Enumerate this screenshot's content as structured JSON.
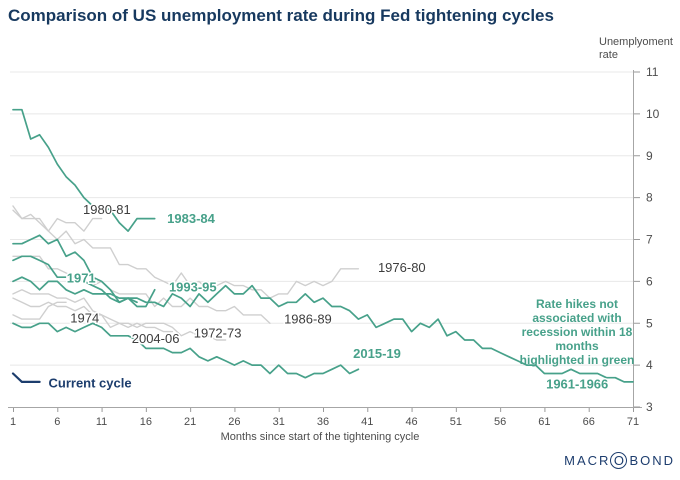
{
  "header": {
    "title": "Comparison of US unemployment rate during Fed tightening cycles"
  },
  "footer": {
    "logo_pre": "MACR",
    "logo_o": "O",
    "logo_post": "BOND"
  },
  "chart_data": {
    "type": "line",
    "title": "Comparison of US unemployment rate during Fed tightening cycles",
    "xlabel": "Months since start of the tightening cycle",
    "ylabel": "Unemplyoment rate",
    "xlim": [
      1,
      72
    ],
    "ylim": [
      3,
      11
    ],
    "x_ticks": [
      1,
      6,
      11,
      16,
      21,
      26,
      31,
      36,
      41,
      46,
      51,
      56,
      61,
      66,
      71
    ],
    "y_ticks": [
      3,
      4,
      5,
      6,
      7,
      8,
      9,
      10,
      11
    ],
    "grid": "horizontal",
    "legend_position": "inline-labels",
    "note": "Rate hikes not\nassociated with\nrecession within 18\nmonths\nhighlighted in green",
    "colors": {
      "green": "#47A18A",
      "gray": "#CFCFCF",
      "navy": "#1C3D6D",
      "gray_label": "#3D3D3D"
    },
    "series": [
      {
        "name": "1972-73",
        "color": "gray",
        "start_month": 1,
        "values": [
          5.7,
          5.8,
          5.7,
          5.7,
          5.7,
          5.6,
          5.6,
          5.5,
          5.6,
          5.3,
          5.2,
          4.9,
          5.0,
          4.9,
          5.0,
          4.9,
          4.9,
          4.8,
          4.8
        ]
      },
      {
        "name": "1974",
        "color": "gray",
        "start_month": 1,
        "values": [
          5.2,
          5.1,
          5.1,
          5.1,
          5.4,
          5.5,
          5.5
        ]
      },
      {
        "name": "1976-80",
        "color": "gray",
        "start_month": 1,
        "values": [
          7.8,
          7.5,
          7.6,
          7.4,
          7.2,
          7.0,
          7.2,
          6.9,
          7.0,
          6.8,
          6.8,
          6.8,
          6.4,
          6.4,
          6.3,
          6.3,
          6.1,
          6.0,
          5.9,
          6.2,
          5.9,
          6.0,
          5.8,
          5.9,
          6.0,
          5.9,
          5.9,
          5.8,
          5.8,
          5.6,
          5.7,
          5.7,
          6.0,
          5.9,
          6.0,
          5.9,
          6.0,
          6.3,
          6.3,
          6.3
        ]
      },
      {
        "name": "1980-81",
        "color": "gray",
        "start_month": 1,
        "values": [
          7.7,
          7.5,
          7.5,
          7.5,
          7.2,
          7.5,
          7.4,
          7.4,
          7.2,
          7.5,
          7.5
        ]
      },
      {
        "name": "1986-89",
        "color": "gray",
        "start_month": 1,
        "values": [
          6.6,
          6.6,
          6.6,
          6.6,
          6.3,
          6.3,
          6.2,
          6.1,
          6.0,
          5.9,
          6.0,
          5.8,
          5.7,
          5.7,
          5.7,
          5.7,
          5.4,
          5.6,
          5.4,
          5.4,
          5.6,
          5.4,
          5.4,
          5.3,
          5.3,
          5.4,
          5.2,
          5.2,
          5.2,
          5.0
        ]
      },
      {
        "name": "2004-06",
        "color": "gray",
        "start_month": 1,
        "values": [
          5.6,
          5.5,
          5.4,
          5.4,
          5.5,
          5.4,
          5.4,
          5.3,
          5.4,
          5.2,
          5.2,
          5.1,
          5.0,
          5.0,
          4.9,
          5.0,
          5.0,
          5.0,
          4.9,
          4.7,
          4.8,
          4.7,
          4.7,
          4.6,
          4.6
        ]
      },
      {
        "name": "1961-1966",
        "color": "green",
        "start_month": 1,
        "values": [
          6.9,
          6.9,
          7.0,
          7.1,
          6.9,
          7.0,
          6.6,
          6.7,
          6.5,
          6.1,
          6.0,
          5.8,
          5.5,
          5.6,
          5.6,
          5.5,
          5.5,
          5.4,
          5.7,
          5.6,
          5.4,
          5.7,
          5.5,
          5.7,
          5.9,
          5.7,
          5.7,
          5.9,
          5.6,
          5.6,
          5.4,
          5.5,
          5.5,
          5.7,
          5.5,
          5.6,
          5.4,
          5.4,
          5.3,
          5.1,
          5.2,
          4.9,
          5.0,
          5.1,
          5.1,
          4.8,
          5.0,
          4.9,
          5.1,
          4.7,
          4.8,
          4.6,
          4.6,
          4.4,
          4.4,
          4.3,
          4.2,
          4.1,
          4.0,
          4.0,
          3.8,
          3.8,
          3.8,
          3.9,
          3.8,
          3.8,
          3.8,
          3.7,
          3.7,
          3.6,
          3.6
        ]
      },
      {
        "name": "1971",
        "color": "green",
        "start_month": 1,
        "values": [
          6.0,
          6.1,
          6.0,
          5.8,
          6.0,
          6.0,
          5.8,
          5.7,
          5.8,
          5.7,
          5.7,
          5.7,
          5.6,
          5.6,
          5.5
        ]
      },
      {
        "name": "1983-84",
        "color": "green",
        "start_month": 1,
        "values": [
          10.1,
          10.1,
          9.4,
          9.5,
          9.2,
          8.8,
          8.5,
          8.3,
          8.0,
          7.8,
          7.8,
          7.7,
          7.4,
          7.2,
          7.5,
          7.5,
          7.5
        ]
      },
      {
        "name": "1993-95",
        "color": "green",
        "start_month": 1,
        "values": [
          6.5,
          6.6,
          6.6,
          6.5,
          6.4,
          6.1,
          6.1,
          6.1,
          6.0,
          5.9,
          5.8,
          5.6,
          5.5,
          5.6,
          5.4,
          5.4,
          5.8
        ]
      },
      {
        "name": "2015-19",
        "color": "green",
        "start_month": 1,
        "values": [
          5.0,
          4.9,
          4.9,
          5.0,
          5.0,
          4.8,
          4.9,
          4.8,
          4.9,
          5.0,
          4.9,
          4.7,
          4.7,
          4.7,
          4.6,
          4.4,
          4.4,
          4.4,
          4.3,
          4.3,
          4.4,
          4.2,
          4.1,
          4.2,
          4.1,
          4.0,
          4.1,
          4.0,
          4.0,
          3.8,
          4.0,
          3.8,
          3.8,
          3.7,
          3.8,
          3.8,
          3.9,
          4.0,
          3.8,
          3.9
        ]
      },
      {
        "name": "Current cycle",
        "color": "navy",
        "start_month": 1,
        "values": [
          3.8,
          3.6,
          3.6,
          3.6
        ]
      }
    ],
    "series_labels": [
      {
        "text": "1980-81",
        "month": 11.6,
        "value": 7.72,
        "color": "gray"
      },
      {
        "text": "1983-84",
        "month": 21.1,
        "value": 7.5,
        "color": "green"
      },
      {
        "text": "1971",
        "month": 8.7,
        "value": 6.08,
        "color": "green"
      },
      {
        "text": "1993-95",
        "month": 21.3,
        "value": 5.86,
        "color": "green"
      },
      {
        "text": "1976-80",
        "month": 44.9,
        "value": 6.33,
        "color": "gray"
      },
      {
        "text": "1974",
        "month": 9.1,
        "value": 5.12,
        "color": "gray"
      },
      {
        "text": "2004-06",
        "month": 17.1,
        "value": 4.64,
        "color": "gray"
      },
      {
        "text": "1972-73",
        "month": 24.1,
        "value": 4.77,
        "color": "gray"
      },
      {
        "text": "1986-89",
        "month": 34.3,
        "value": 5.1,
        "color": "gray"
      },
      {
        "text": "2015-19",
        "month": 42.1,
        "value": 4.28,
        "color": "green"
      },
      {
        "text": "1961-1966",
        "month": 64.7,
        "value": 3.55,
        "color": "green"
      },
      {
        "text": "Current cycle",
        "month": 9.7,
        "value": 3.57,
        "color": "navy"
      }
    ]
  }
}
